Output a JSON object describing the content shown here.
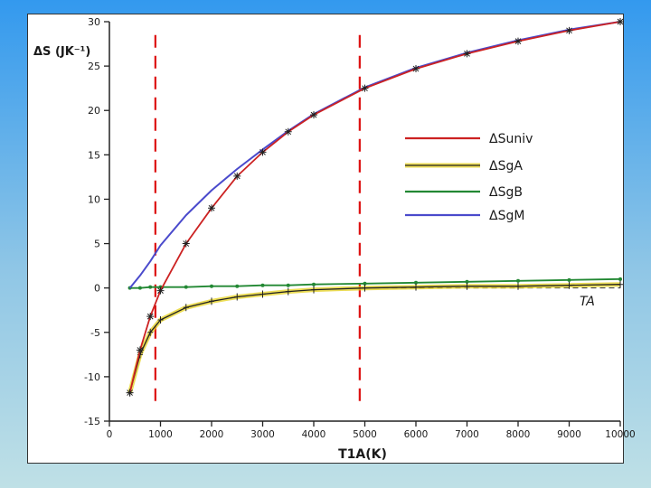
{
  "chart_data": {
    "type": "line",
    "title": "",
    "xlabel": "T1A(K)",
    "ylabel": "ΔS (JK⁻¹)",
    "xlim": [
      0,
      10000
    ],
    "ylim": [
      -15,
      30
    ],
    "xticks": [
      0,
      1000,
      2000,
      3000,
      4000,
      5000,
      6000,
      7000,
      8000,
      9000,
      10000
    ],
    "yticks": [
      -15,
      -10,
      -5,
      0,
      5,
      10,
      15,
      20,
      25,
      30
    ],
    "x": [
      400,
      600,
      800,
      1000,
      1500,
      2000,
      2500,
      3000,
      3500,
      4000,
      5000,
      6000,
      7000,
      8000,
      9000,
      10000
    ],
    "series": [
      {
        "name": "ΔSuniv",
        "color": "#cc2222",
        "marker": "star",
        "values": [
          -11.8,
          -7.0,
          -3.2,
          -0.3,
          5.0,
          9.0,
          12.6,
          15.3,
          17.6,
          19.5,
          22.5,
          24.7,
          26.4,
          27.8,
          29.0,
          30.0
        ]
      },
      {
        "name": "ΔSgA",
        "color": "#e6d21e",
        "marker": "plus",
        "values": [
          -11.8,
          -7.5,
          -5.0,
          -3.6,
          -2.2,
          -1.5,
          -1.0,
          -0.7,
          -0.4,
          -0.2,
          0.0,
          0.1,
          0.2,
          0.2,
          0.3,
          0.4
        ]
      },
      {
        "name": "ΔSgB",
        "color": "#228833",
        "marker": "dot",
        "values": [
          0.0,
          0.0,
          0.1,
          0.1,
          0.1,
          0.2,
          0.2,
          0.3,
          0.3,
          0.4,
          0.5,
          0.6,
          0.7,
          0.8,
          0.9,
          1.0
        ]
      },
      {
        "name": "ΔSgM",
        "color": "#4a4acc",
        "marker": "none",
        "values": [
          0.0,
          1.4,
          3.0,
          4.8,
          8.2,
          11.0,
          13.4,
          15.6,
          17.7,
          19.6,
          22.6,
          24.8,
          26.5,
          27.9,
          29.1,
          30.0
        ]
      }
    ],
    "reference_lines": {
      "vertical_x": [
        900,
        4900
      ],
      "color": "#dd1111",
      "style": "dashed"
    },
    "annotations": [
      {
        "text": "TA",
        "x": 10000,
        "y": -1.4
      }
    ],
    "grid": false,
    "legend_position": "right"
  }
}
